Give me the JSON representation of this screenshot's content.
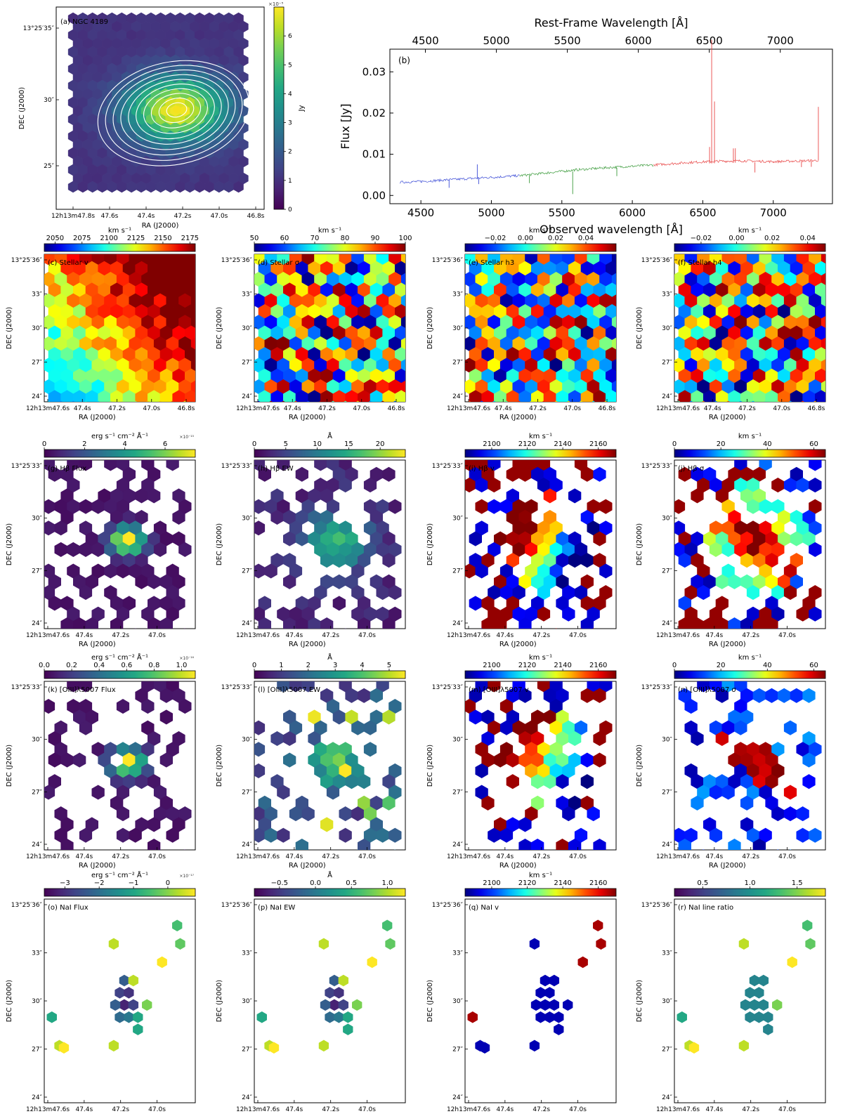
{
  "chart_data": [
    {
      "id": "a",
      "type": "heatmap",
      "title": "(a) NGC 4189",
      "xlabel": "RA (J2000)",
      "ylabel": "DEC (J2000)",
      "xticks": [
        "12h13m47.8s",
        "47.6s",
        "47.4s",
        "47.2s",
        "47.0s",
        "46.8s"
      ],
      "yticks": [
        "13°25′35″",
        "30″",
        "25″"
      ],
      "colorbar": {
        "label": "Jy",
        "scale_text": "×10⁻⁵",
        "ticks": [
          "0",
          "1",
          "2",
          "3",
          "4",
          "5",
          "6"
        ],
        "vmin": 0,
        "vmax": 7,
        "cmap": "viridis"
      },
      "contours": 10
    },
    {
      "id": "b",
      "type": "line",
      "title": "(b)",
      "xlabel": "Observed wavelength [Å]",
      "x2label": "Rest-Frame Wavelength [Å]",
      "ylabel": "Flux [Jy]",
      "xlim": [
        4280,
        7420
      ],
      "ylim": [
        -0.002,
        0.0355
      ],
      "xticks": [
        4500,
        5000,
        5500,
        6000,
        6500,
        7000
      ],
      "x2ticks": [
        4500,
        5000,
        5500,
        6000,
        6500,
        7000
      ],
      "yticks": [
        "0.00",
        "0.01",
        "0.02",
        "0.03"
      ],
      "ytick_values": [
        0.0,
        0.01,
        0.02,
        0.03
      ],
      "rest_shift": 1.0071,
      "series": [
        {
          "name": "blue arm",
          "color": "#3b4bd6",
          "x": [
            4350,
            4500,
            4700,
            4900,
            5000,
            5200
          ],
          "y": [
            0.0032,
            0.0034,
            0.0038,
            0.0042,
            0.0044,
            0.0048
          ],
          "spikes": [
            [
              4700,
              -0.002
            ],
            [
              4900,
              0.0033
            ],
            [
              4910,
              -0.0015
            ]
          ]
        },
        {
          "name": "green arm",
          "color": "#3a9a3a",
          "x": [
            5200,
            5400,
            5600,
            5800,
            6000,
            6150
          ],
          "y": [
            0.0048,
            0.0055,
            0.0062,
            0.0067,
            0.0071,
            0.0074
          ],
          "spikes": [
            [
              5577,
              -0.0055
            ],
            [
              5270,
              -0.002
            ],
            [
              5890,
              -0.002
            ]
          ]
        },
        {
          "name": "red arm",
          "color": "#e84545",
          "x": [
            6150,
            6400,
            6600,
            6800,
            7000,
            7320
          ],
          "y": [
            0.0074,
            0.008,
            0.0083,
            0.0084,
            0.0082,
            0.0085
          ],
          "spikes": [
            [
              6563,
              0.03
            ],
            [
              6583,
              0.015
            ],
            [
              6548,
              0.004
            ],
            [
              6717,
              0.0035
            ],
            [
              6731,
              0.0035
            ],
            [
              7320,
              0.013
            ],
            [
              6870,
              -0.0025
            ],
            [
              7200,
              -0.0015
            ],
            [
              7270,
              -0.0015
            ]
          ]
        }
      ]
    },
    {
      "id": "c",
      "type": "heatmap",
      "title": "(c) Stellar v",
      "cmap": "jet",
      "colorbar": {
        "label": "km s⁻¹",
        "ticks": [
          "2050",
          "2075",
          "2100",
          "2125",
          "2150",
          "2175"
        ],
        "tick_values": [
          2050,
          2075,
          2100,
          2125,
          2150,
          2175
        ],
        "vmin": 2040,
        "vmax": 2180
      },
      "xticks": [
        "12h13m47.6s",
        "47.4s",
        "47.2s",
        "47.0s",
        "46.8s"
      ],
      "yticks": [
        "13°25′36″",
        "33″",
        "30″",
        "27″",
        "24″"
      ],
      "xlabel": "RA (J2000)",
      "ylabel": "DEC (J2000)",
      "fill": "full",
      "pattern": "gradient"
    },
    {
      "id": "d",
      "type": "heatmap",
      "title": "(d) Stellar σ",
      "cmap": "jet",
      "colorbar": {
        "label": "km s⁻¹",
        "ticks": [
          "50",
          "60",
          "70",
          "80",
          "90",
          "100"
        ],
        "tick_values": [
          50,
          60,
          70,
          80,
          90,
          100
        ],
        "vmin": 50,
        "vmax": 100
      },
      "xticks": [
        "12h13m47.6s",
        "47.4s",
        "47.2s",
        "47.0s",
        "46.8s"
      ],
      "yticks": [
        "13°25′36″",
        "33″",
        "30″",
        "27″",
        "24″"
      ],
      "xlabel": "RA (J2000)",
      "ylabel": "DEC (J2000)",
      "fill": "full",
      "pattern": "noise"
    },
    {
      "id": "e",
      "type": "heatmap",
      "title": "(e) Stellar h3",
      "cmap": "jet",
      "colorbar": {
        "label": "km s⁻¹",
        "ticks": [
          "−0.02",
          "0.00",
          "0.02",
          "0.04"
        ],
        "tick_values": [
          -0.02,
          0.0,
          0.02,
          0.04
        ],
        "vmin": -0.04,
        "vmax": 0.06
      },
      "xticks": [
        "12h13m47.6s",
        "47.4s",
        "47.2s",
        "47.0s",
        "46.8s"
      ],
      "yticks": [
        "13°25′36″",
        "33″",
        "30″",
        "27″",
        "24″"
      ],
      "xlabel": "RA (J2000)",
      "ylabel": "DEC (J2000)",
      "fill": "full",
      "pattern": "noise"
    },
    {
      "id": "f",
      "type": "heatmap",
      "title": "(f) Stellar h4",
      "cmap": "jet",
      "colorbar": {
        "label": "km s⁻¹",
        "ticks": [
          "−0.02",
          "0.00",
          "0.02",
          "0.04"
        ],
        "tick_values": [
          -0.02,
          0.0,
          0.02,
          0.04
        ],
        "vmin": -0.035,
        "vmax": 0.05
      },
      "xticks": [
        "12h13m47.6s",
        "47.4s",
        "47.2s",
        "47.0s",
        "46.8s"
      ],
      "yticks": [
        "13°25′36″",
        "33″",
        "30″",
        "27″",
        "24″"
      ],
      "xlabel": "RA (J2000)",
      "ylabel": "DEC (J2000)",
      "fill": "full",
      "pattern": "noise"
    },
    {
      "id": "g",
      "type": "heatmap",
      "title": "(g) Hβ Flux",
      "cmap": "viridis",
      "colorbar": {
        "label": "erg s⁻¹ cm⁻² Å⁻¹",
        "scale_text": "×10⁻¹⁵",
        "ticks": [
          "0",
          "2",
          "4",
          "6"
        ],
        "tick_values": [
          0,
          2,
          4,
          6
        ],
        "vmin": 0,
        "vmax": 7.5
      },
      "xticks": [
        "12h13m47.6s",
        "47.4s",
        "47.2s",
        "47.0s"
      ],
      "yticks": [
        "13°25′33″",
        "30″",
        "27″",
        "24″"
      ],
      "xlabel": "RA (J2000)",
      "ylabel": "DEC (J2000)",
      "fill": "sparse",
      "pattern": "peak"
    },
    {
      "id": "h",
      "type": "heatmap",
      "title": "(h) Hβ EW",
      "cmap": "viridis",
      "colorbar": {
        "label": "Å",
        "ticks": [
          "0",
          "5",
          "10",
          "15",
          "20"
        ],
        "tick_values": [
          0,
          5,
          10,
          15,
          20
        ],
        "vmin": 0,
        "vmax": 24
      },
      "xticks": [
        "12h13m47.6s",
        "47.4s",
        "47.2s",
        "47.0s"
      ],
      "yticks": [
        "13°25′33″",
        "30″",
        "27″",
        "24″"
      ],
      "xlabel": "RA (J2000)",
      "ylabel": "DEC (J2000)",
      "fill": "sparse",
      "pattern": "peak_soft"
    },
    {
      "id": "i",
      "type": "heatmap",
      "title": "(i) Hβ v",
      "cmap": "jet",
      "colorbar": {
        "label": "km s⁻¹",
        "ticks": [
          "2100",
          "2120",
          "2140",
          "2160"
        ],
        "tick_values": [
          2100,
          2120,
          2140,
          2160
        ],
        "vmin": 2085,
        "vmax": 2170
      },
      "xticks": [
        "12h13m47.6s",
        "47.4s",
        "47.2s",
        "47.0s"
      ],
      "yticks": [
        "13°25′33″",
        "30″",
        "27″",
        "24″"
      ],
      "xlabel": "RA (J2000)",
      "ylabel": "DEC (J2000)",
      "fill": "sparse",
      "pattern": "velocity"
    },
    {
      "id": "j",
      "type": "heatmap",
      "title": "(j) Hβ σ",
      "cmap": "jet",
      "colorbar": {
        "label": "km s⁻¹",
        "ticks": [
          "0",
          "20",
          "40",
          "60"
        ],
        "tick_values": [
          0,
          20,
          40,
          60
        ],
        "vmin": 0,
        "vmax": 65
      },
      "xticks": [
        "12h13m47.6s",
        "47.4s",
        "47.2s",
        "47.0s"
      ],
      "yticks": [
        "13°25′33″",
        "30″",
        "27″",
        "24″"
      ],
      "xlabel": "RA (J2000)",
      "ylabel": "DEC (J2000)",
      "fill": "sparse",
      "pattern": "sigma"
    },
    {
      "id": "k",
      "type": "heatmap",
      "title": "(k) [OIII]λ5007 Flux",
      "cmap": "viridis",
      "colorbar": {
        "label": "erg s⁻¹ cm⁻² Å⁻¹",
        "scale_text": "×10⁻¹⁶",
        "ticks": [
          "0.0",
          "0.2",
          "0.4",
          "0.6",
          "0.8",
          "1.0"
        ],
        "tick_values": [
          0,
          0.2,
          0.4,
          0.6,
          0.8,
          1.0
        ],
        "vmin": 0,
        "vmax": 1.1
      },
      "xticks": [
        "12h13m47.6s",
        "47.4s",
        "47.2s",
        "47.0s"
      ],
      "yticks": [
        "13°25′33″",
        "30″",
        "27″",
        "24″"
      ],
      "xlabel": "RA (J2000)",
      "ylabel": "DEC (J2000)",
      "fill": "sparser",
      "pattern": "peak"
    },
    {
      "id": "l",
      "type": "heatmap",
      "title": "(l) [OIII]λ5007 EW",
      "cmap": "viridis",
      "colorbar": {
        "label": "Å",
        "ticks": [
          "0",
          "1",
          "2",
          "3",
          "4",
          "5"
        ],
        "tick_values": [
          0,
          1,
          2,
          3,
          4,
          5
        ],
        "vmin": 0,
        "vmax": 5.6
      },
      "xticks": [
        "12h13m47.6s",
        "47.4s",
        "47.2s",
        "47.0s"
      ],
      "yticks": [
        "13°25′33″",
        "30″",
        "27″",
        "24″"
      ],
      "xlabel": "RA (J2000)",
      "ylabel": "DEC (J2000)",
      "fill": "sparser",
      "pattern": "ew_mixed"
    },
    {
      "id": "m",
      "type": "heatmap",
      "title": "(m) [OIII]λ5007 v",
      "cmap": "jet",
      "colorbar": {
        "label": "km s⁻¹",
        "ticks": [
          "2100",
          "2120",
          "2140",
          "2160"
        ],
        "tick_values": [
          2100,
          2120,
          2140,
          2160
        ],
        "vmin": 2085,
        "vmax": 2170
      },
      "xticks": [
        "12h13m47.6s",
        "47.4s",
        "47.2s",
        "47.0s"
      ],
      "yticks": [
        "13°25′33″",
        "30″",
        "27″",
        "24″"
      ],
      "xlabel": "RA (J2000)",
      "ylabel": "DEC (J2000)",
      "fill": "sparser",
      "pattern": "velocity"
    },
    {
      "id": "n",
      "type": "heatmap",
      "title": "(n) [OIII]λ5007 σ",
      "cmap": "jet",
      "colorbar": {
        "label": "km s⁻¹",
        "ticks": [
          "0",
          "20",
          "40",
          "60"
        ],
        "tick_values": [
          0,
          20,
          40,
          60
        ],
        "vmin": 0,
        "vmax": 65
      },
      "xticks": [
        "12h13m47.6s",
        "47.4s",
        "47.2s",
        "47.0s"
      ],
      "yticks": [
        "13°25′33″",
        "30″",
        "27″",
        "24″"
      ],
      "xlabel": "RA (J2000)",
      "ylabel": "DEC (J2000)",
      "fill": "sparser",
      "pattern": "sigma_strong"
    },
    {
      "id": "o",
      "type": "heatmap",
      "title": "(o) NaI Flux",
      "cmap": "viridis",
      "colorbar": {
        "label": "erg s⁻¹ cm⁻² Å⁻¹",
        "scale_text": "×10⁻¹⁷",
        "ticks": [
          "−3",
          "−2",
          "−1",
          "0"
        ],
        "tick_values": [
          -3,
          -2,
          -1,
          0
        ],
        "vmin": -3.6,
        "vmax": 0.8
      },
      "xticks": [
        "12h13m47.6s",
        "47.4s",
        "47.2s",
        "47.0s"
      ],
      "yticks": [
        "13°25′36″",
        "33″",
        "30″",
        "27″",
        "24″"
      ],
      "xlabel": "RA (J2000)",
      "ylabel": "DEC (J2000)",
      "fill": "nai",
      "pattern": "nai_flux"
    },
    {
      "id": "p",
      "type": "heatmap",
      "title": "(p) NaI EW",
      "cmap": "viridis",
      "colorbar": {
        "label": "Å",
        "ticks": [
          "−0.5",
          "0.0",
          "0.5",
          "1.0"
        ],
        "tick_values": [
          -0.5,
          0.0,
          0.5,
          1.0
        ],
        "vmin": -0.85,
        "vmax": 1.25
      },
      "xticks": [
        "12h13m47.6s",
        "47.4s",
        "47.2s",
        "47.0s"
      ],
      "yticks": [
        "13°25′36″",
        "33″",
        "30″",
        "27″",
        "24″"
      ],
      "xlabel": "RA (J2000)",
      "ylabel": "DEC (J2000)",
      "fill": "nai",
      "pattern": "nai_ew"
    },
    {
      "id": "q",
      "type": "heatmap",
      "title": "(q) NaI v",
      "cmap": "jet",
      "colorbar": {
        "label": "km s⁻¹",
        "ticks": [
          "2100",
          "2120",
          "2140",
          "2160"
        ],
        "tick_values": [
          2100,
          2120,
          2140,
          2160
        ],
        "vmin": 2085,
        "vmax": 2170
      },
      "xticks": [
        "12h13m47.6s",
        "47.4s",
        "47.2s",
        "47.0s"
      ],
      "yticks": [
        "13°25′36″",
        "33″",
        "30″",
        "27″",
        "24″"
      ],
      "xlabel": "RA (J2000)",
      "ylabel": "DEC (J2000)",
      "fill": "nai",
      "pattern": "nai_v"
    },
    {
      "id": "r",
      "type": "heatmap",
      "title": "(r) NaI line ratio",
      "cmap": "viridis",
      "colorbar": {
        "label": "",
        "ticks": [
          "0.5",
          "1.0",
          "1.5"
        ],
        "tick_values": [
          0.5,
          1.0,
          1.5
        ],
        "vmin": 0.2,
        "vmax": 1.8
      },
      "xticks": [
        "12h13m47.6s",
        "47.4s",
        "47.2s",
        "47.0s"
      ],
      "yticks": [
        "13°25′36″",
        "33″",
        "30″",
        "27″",
        "24″"
      ],
      "xlabel": "RA (J2000)",
      "ylabel": "DEC (J2000)",
      "fill": "nai",
      "pattern": "nai_ratio"
    }
  ]
}
